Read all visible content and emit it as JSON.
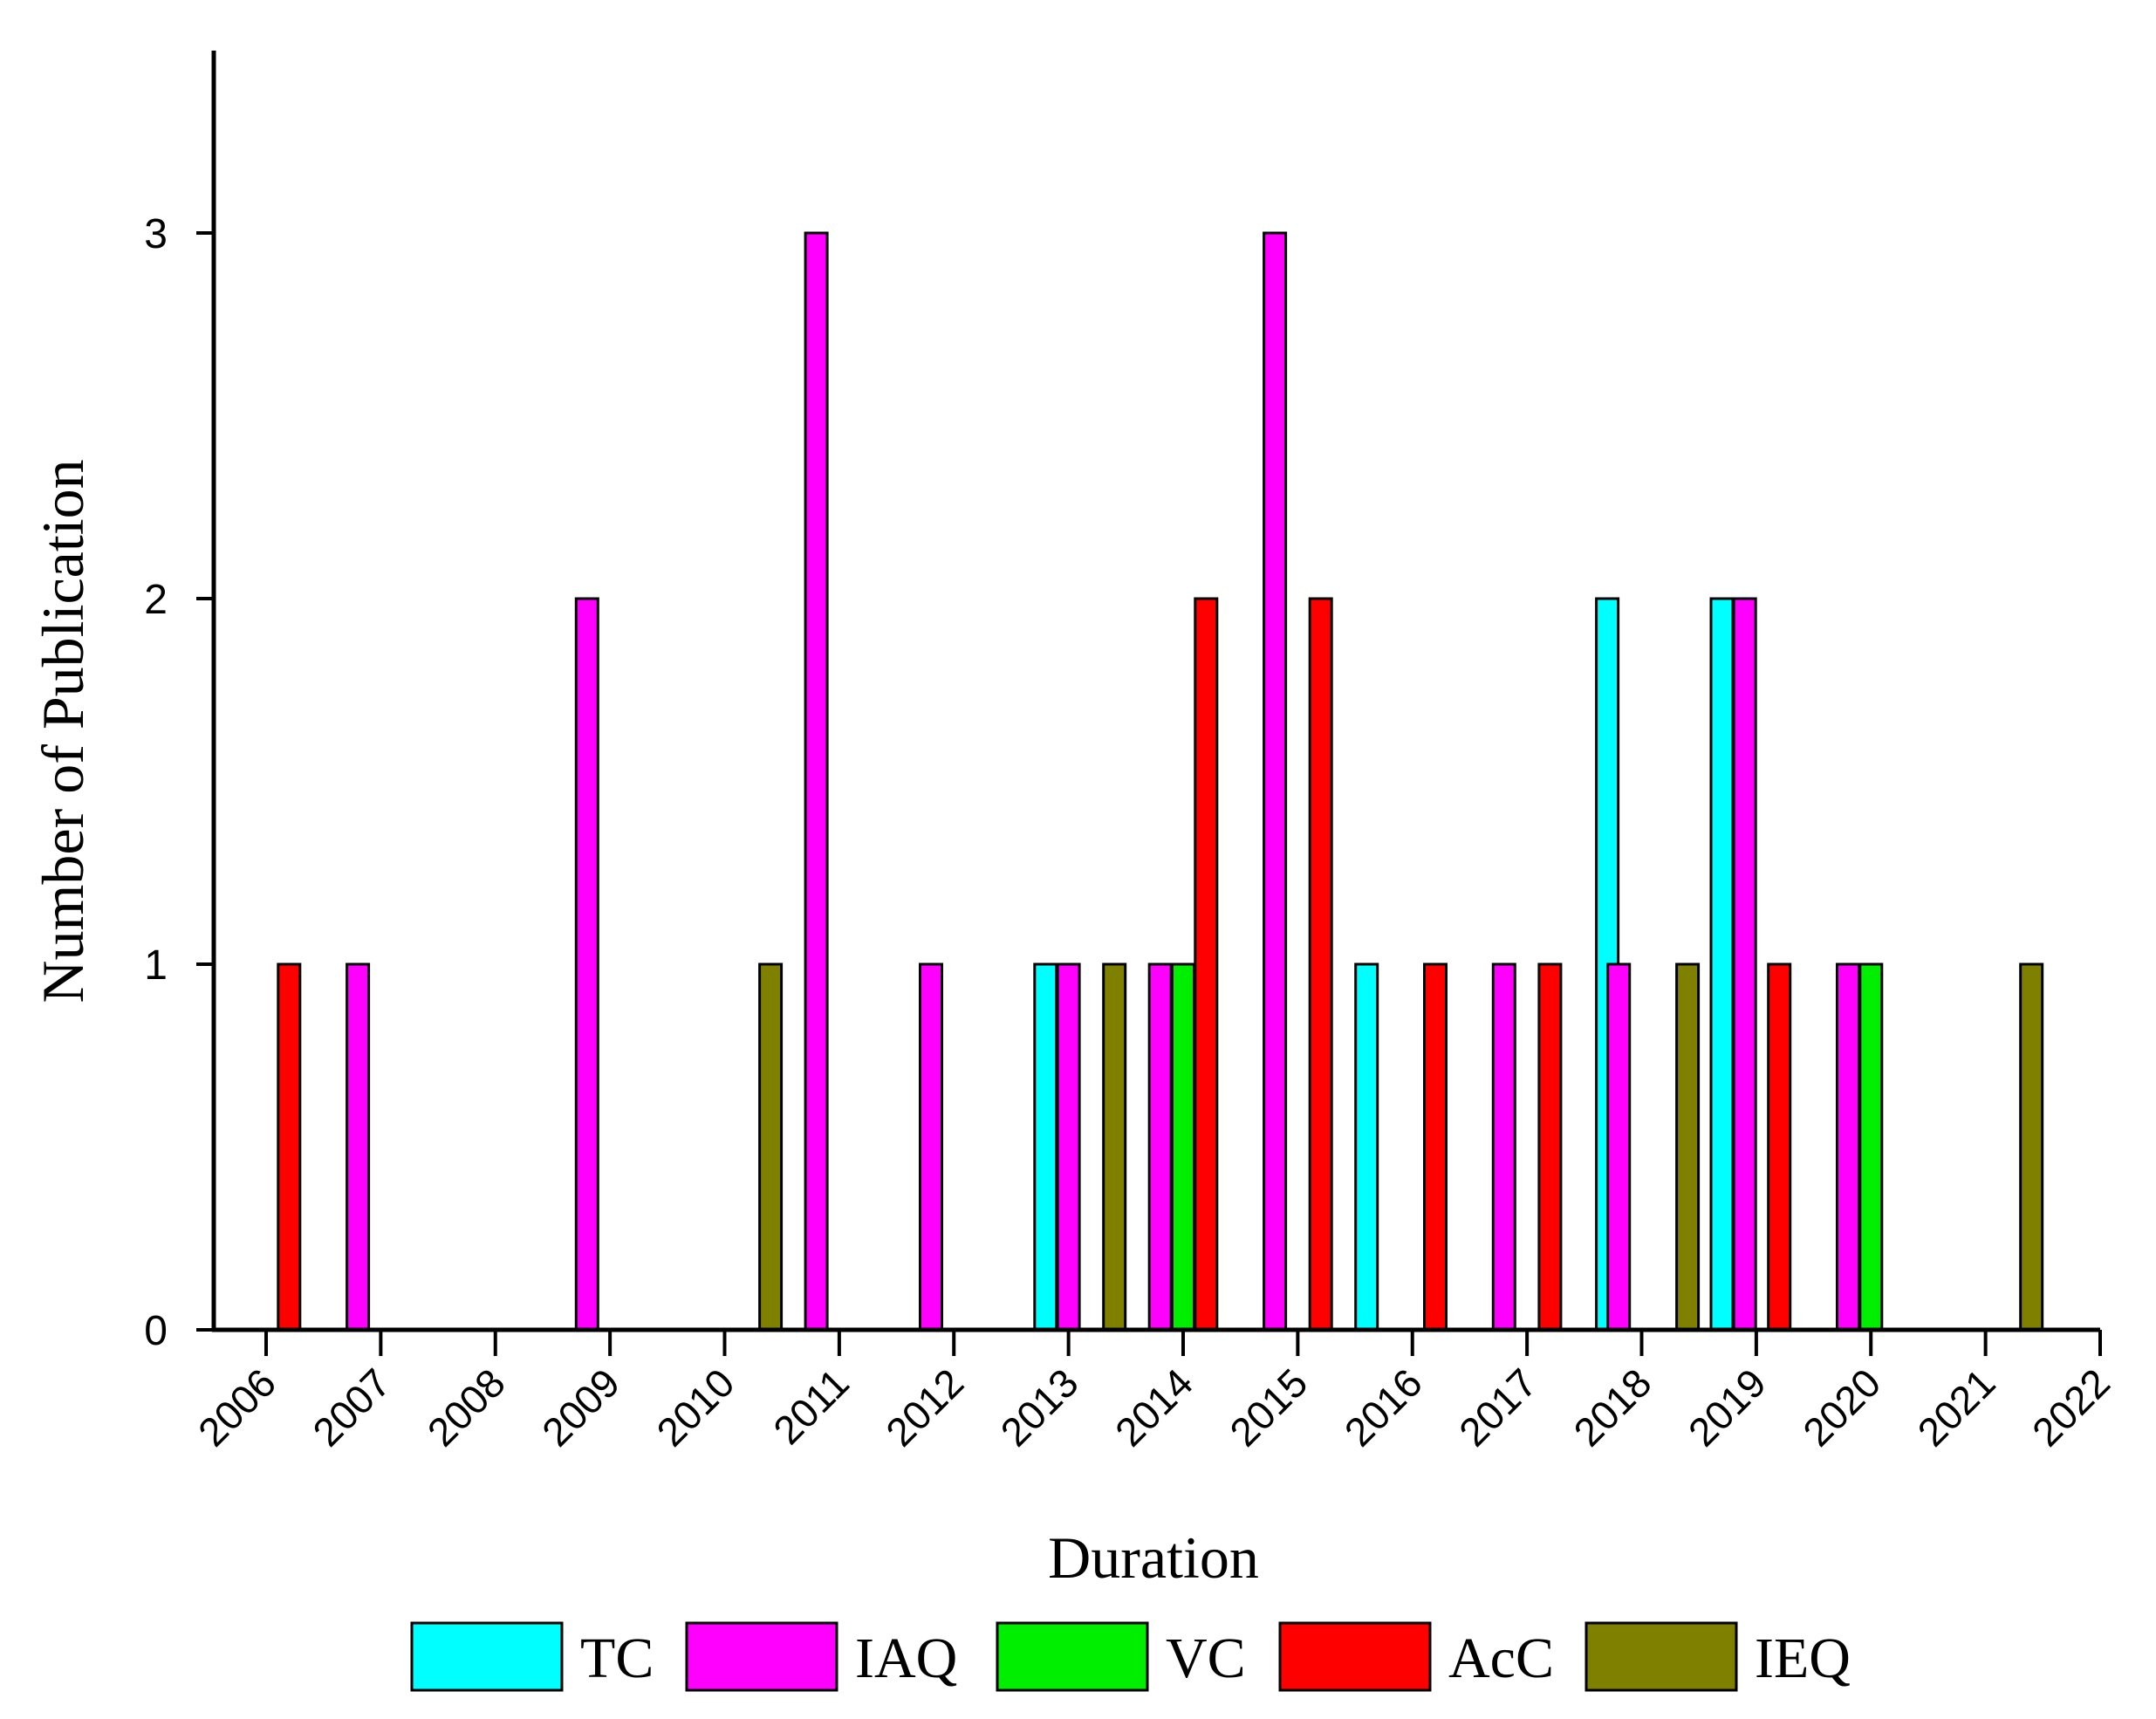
{
  "chart_data": {
    "type": "bar",
    "title": "",
    "xlabel": "Duration",
    "ylabel": "Number of Publication",
    "ylim": [
      0,
      3.5
    ],
    "yticks": [
      0,
      1,
      2,
      3
    ],
    "ytick_labels": [
      "0",
      "1",
      "2",
      "3"
    ],
    "year_ticks": [
      "2006",
      "2007",
      "2008",
      "2009",
      "2010",
      "2011",
      "2012",
      "2013",
      "2014",
      "2015",
      "2016",
      "2017",
      "2018",
      "2019",
      "2020",
      "2021",
      "2022"
    ],
    "x_range": [
      2006,
      2022
    ],
    "legend_position": "bottom",
    "series": [
      {
        "name": "TC",
        "color": "#00FFFF",
        "points": [
          {
            "x": 2012.8,
            "y": 1
          },
          {
            "x": 2015.6,
            "y": 1
          },
          {
            "x": 2017.7,
            "y": 2
          },
          {
            "x": 2018.7,
            "y": 2
          }
        ]
      },
      {
        "name": "IAQ",
        "color": "#FF00FF",
        "points": [
          {
            "x": 2006.8,
            "y": 1
          },
          {
            "x": 2008.8,
            "y": 2
          },
          {
            "x": 2010.8,
            "y": 3
          },
          {
            "x": 2011.8,
            "y": 1
          },
          {
            "x": 2013.0,
            "y": 1
          },
          {
            "x": 2013.8,
            "y": 1
          },
          {
            "x": 2014.8,
            "y": 3
          },
          {
            "x": 2016.8,
            "y": 1
          },
          {
            "x": 2017.8,
            "y": 1
          },
          {
            "x": 2018.9,
            "y": 2
          },
          {
            "x": 2019.8,
            "y": 1
          }
        ]
      },
      {
        "name": "VC",
        "color": "#00EE00",
        "points": [
          {
            "x": 2014.0,
            "y": 1
          },
          {
            "x": 2020.0,
            "y": 1
          }
        ]
      },
      {
        "name": "AcC",
        "color": "#FF0000",
        "points": [
          {
            "x": 2006.2,
            "y": 1
          },
          {
            "x": 2014.2,
            "y": 2
          },
          {
            "x": 2015.2,
            "y": 2
          },
          {
            "x": 2016.2,
            "y": 1
          },
          {
            "x": 2017.2,
            "y": 1
          },
          {
            "x": 2019.2,
            "y": 1
          }
        ]
      },
      {
        "name": "IEQ",
        "color": "#808000",
        "points": [
          {
            "x": 2010.4,
            "y": 1
          },
          {
            "x": 2013.4,
            "y": 1
          },
          {
            "x": 2018.4,
            "y": 1
          },
          {
            "x": 2021.4,
            "y": 1
          }
        ]
      }
    ]
  }
}
